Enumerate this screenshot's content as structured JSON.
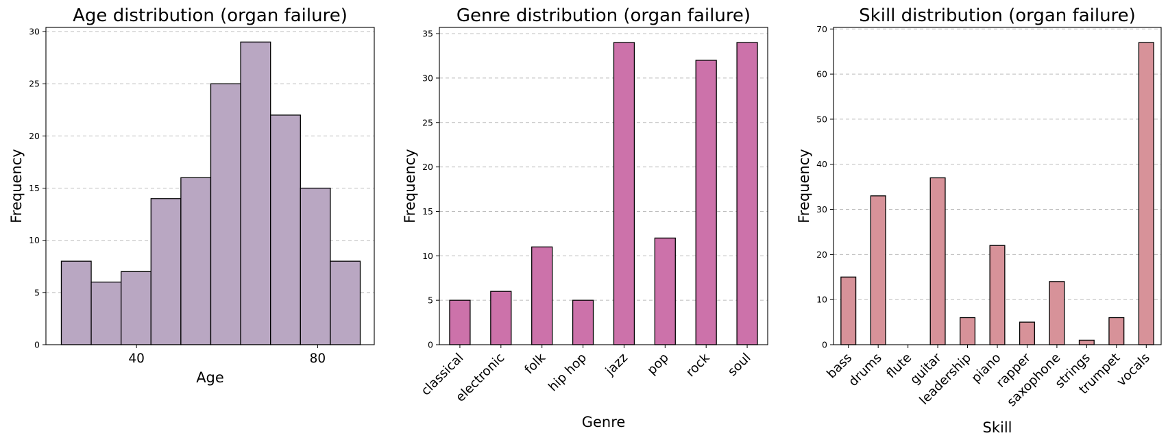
{
  "chart_data": [
    {
      "type": "bar",
      "title": "Age distribution (organ failure)",
      "xlabel": "Age",
      "ylabel": "Frequency",
      "xlim": [
        20,
        92.5
      ],
      "ylim": [
        0,
        30.4
      ],
      "x_ticks": [
        40,
        80
      ],
      "y_ticks": [
        0,
        5,
        10,
        15,
        20,
        25,
        30
      ],
      "bin_edges": [
        23.4,
        30.0,
        36.6,
        43.2,
        49.8,
        56.4,
        63.0,
        69.6,
        76.2,
        82.8,
        89.4
      ],
      "values": [
        8,
        6,
        7,
        14,
        16,
        25,
        29,
        22,
        15,
        8
      ],
      "color": "#b9a7c2",
      "grid": "y"
    },
    {
      "type": "bar",
      "title": "Genre distribution (organ failure)",
      "xlabel": "Genre",
      "ylabel": "Frequency",
      "ylim": [
        0,
        35.7
      ],
      "y_ticks": [
        0,
        5,
        10,
        15,
        20,
        25,
        30,
        35
      ],
      "categories": [
        "classical",
        "electronic",
        "folk",
        "hip hop",
        "jazz",
        "pop",
        "rock",
        "soul"
      ],
      "values": [
        5,
        6,
        11,
        5,
        34,
        12,
        32,
        34
      ],
      "color": "#cc72aa",
      "grid": "y"
    },
    {
      "type": "bar",
      "title": "Skill distribution (organ failure)",
      "xlabel": "Skill",
      "ylabel": "Frequency",
      "ylim": [
        0,
        70.35
      ],
      "y_ticks": [
        0,
        10,
        20,
        30,
        40,
        50,
        60,
        70
      ],
      "categories": [
        "bass",
        "drums",
        "flute",
        "guitar",
        "leadership",
        "piano",
        "rapper",
        "saxophone",
        "strings",
        "trumpet",
        "vocals"
      ],
      "values": [
        15,
        33,
        0,
        37,
        6,
        22,
        5,
        14,
        1,
        6,
        67
      ],
      "color": "#d79299",
      "grid": "y"
    }
  ]
}
